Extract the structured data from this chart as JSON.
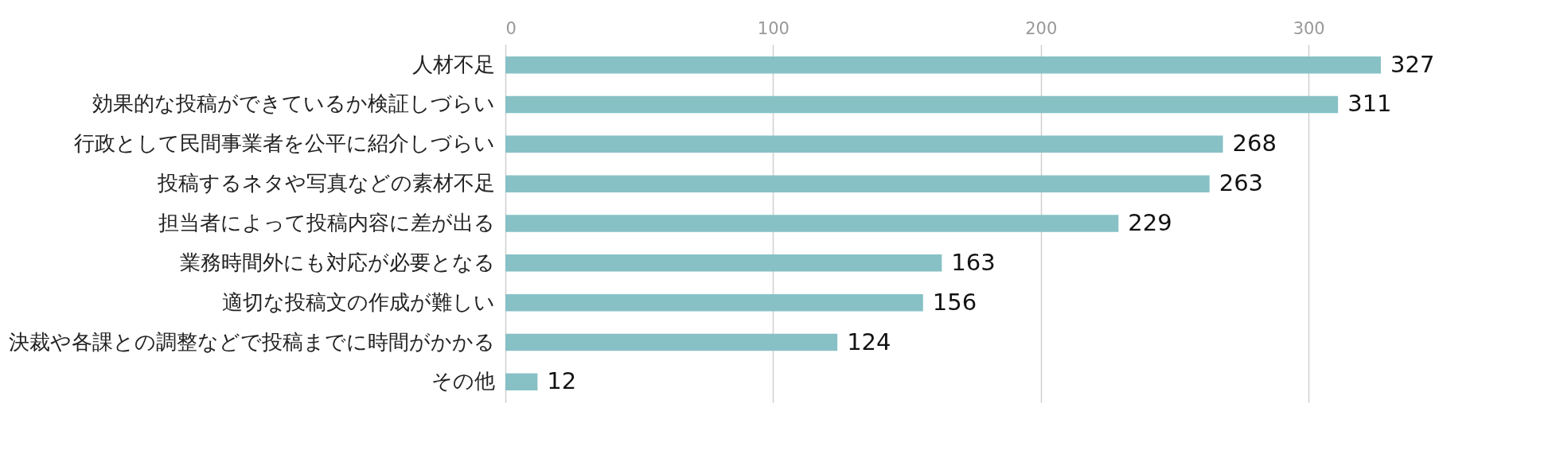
{
  "chart_data": {
    "type": "bar",
    "orientation": "horizontal",
    "categories": [
      "人材不足",
      "効果的な投稿ができているか検証しづらい",
      "行政として民間事業者を公平に紹介しづらい",
      "投稿するネタや写真などの素材不足",
      "担当者によって投稿内容に差が出る",
      "業務時間外にも対応が必要となる",
      "適切な投稿文の作成が難しい",
      "決裁や各課との調整などで投稿までに時間がかかる",
      "その他"
    ],
    "values": [
      327,
      311,
      268,
      263,
      229,
      163,
      156,
      124,
      12
    ],
    "color": "#87c1c6",
    "xlim": [
      0,
      327
    ],
    "xticks": [
      0,
      100,
      200,
      300
    ],
    "grid": "x",
    "data_labels": true
  }
}
